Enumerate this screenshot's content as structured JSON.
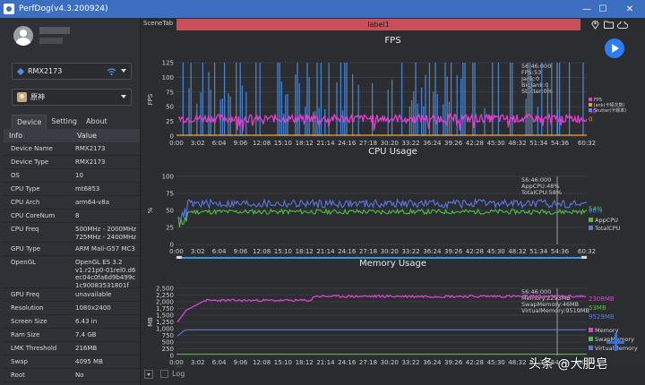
{
  "window": {
    "title": "PerfDog(v4.3.200924)",
    "minimize": "—",
    "maximize": "☐",
    "close": "✕"
  },
  "device_select": {
    "value": "RMX2173",
    "icon": "device-icon"
  },
  "app_select": {
    "value": "原神",
    "icon": "app-icon"
  },
  "tabs": [
    {
      "label": "Device"
    },
    {
      "label": "Setting"
    },
    {
      "label": "About"
    }
  ],
  "table": {
    "headers": [
      "Info",
      "Value"
    ],
    "rows": [
      {
        "k": "Device Name",
        "v": "RMX2173"
      },
      {
        "k": "Device Type",
        "v": "RMX2173"
      },
      {
        "k": "OS",
        "v": "10"
      },
      {
        "k": "CPU Type",
        "v": "mt6853"
      },
      {
        "k": "CPU Arch",
        "v": "arm64-v8a"
      },
      {
        "k": "CPU CoreNum",
        "v": "8"
      },
      {
        "k": "CPU Freq",
        "v": "500MHz - 2000MHz\n725MHz - 2400MHz"
      },
      {
        "k": "GPU Type",
        "v": "ARM Mali-G57 MC3"
      },
      {
        "k": "OpenGL",
        "v": "OpenGL ES 3.2\nv1.r21p0-01rel0.d6\nec04c0fa6d9b499c\n1c90083531801f"
      },
      {
        "k": "GPU Freq",
        "v": "unavailable"
      },
      {
        "k": "Resolution",
        "v": "1080x2400"
      },
      {
        "k": "Screen Size",
        "v": "6.43 in"
      },
      {
        "k": "Ram Size",
        "v": "7.4 GB"
      },
      {
        "k": "LMK Threshold",
        "v": "216MB"
      },
      {
        "k": "Swap",
        "v": "4095 MB"
      },
      {
        "k": "Root",
        "v": "No"
      }
    ]
  },
  "scene": {
    "tab": "SceneTab",
    "label": "label1"
  },
  "bottom": {
    "log_label": "Log"
  },
  "watermark": "头条 @大肥皂",
  "chart_data": [
    {
      "type": "line",
      "title": "FPS",
      "ylabel": "FPS",
      "ylim": [
        0,
        125
      ],
      "yticks": [
        0,
        25,
        50,
        75,
        100,
        125
      ],
      "x_ticks": [
        "0:00",
        "3:02",
        "6:04",
        "9:06",
        "12:08",
        "15:10",
        "18:12",
        "21:14",
        "24:16",
        "27:18",
        "30:20",
        "33:22",
        "36:24",
        "39:26",
        "42:28",
        "45:30",
        "48:32",
        "51:34",
        "54:36",
        "60:32"
      ],
      "series": [
        {
          "name": "FPS",
          "color": "#e040d0",
          "value_label": "30"
        },
        {
          "name": "Jank(卡顿次数)",
          "color": "#e8a030",
          "value_label": "0"
        },
        {
          "name": "Stutter(卡顿率)",
          "color": "#4f8fe8"
        }
      ],
      "fps_level": 30,
      "tooltip": [
        "56:46:000",
        "FPS:53",
        "Jank:0",
        "BigJank:0",
        "Stutter:0%"
      ]
    },
    {
      "type": "line",
      "title": "CPU Usage",
      "ylabel": "%",
      "ylim": [
        0,
        100
      ],
      "yticks": [
        0,
        25,
        50,
        75,
        100
      ],
      "x_ticks": [
        "0:00",
        "3:02",
        "6:04",
        "9:06",
        "12:08",
        "15:10",
        "18:12",
        "21:14",
        "24:16",
        "27:18",
        "30:20",
        "33:22",
        "36:24",
        "39:26",
        "42:28",
        "45:30",
        "48:32",
        "51:34",
        "54:36",
        "60:32"
      ],
      "series": [
        {
          "name": "AppCPU",
          "color": "#4cc040",
          "value_label": "54%",
          "level": 48
        },
        {
          "name": "TotalCPU",
          "color": "#5a78e0",
          "value_label": "66%",
          "level": 60
        }
      ],
      "tooltip": [
        "56:46:000",
        "AppCPU:48%",
        "TotalCPU:58%"
      ]
    },
    {
      "type": "line",
      "title": "Memory Usage",
      "ylabel": "MB",
      "ylim": [
        0,
        2500
      ],
      "yticks": [
        0,
        250,
        500,
        750,
        1000,
        1250,
        1500,
        1750,
        2000,
        2250,
        2500
      ],
      "ytick_labels": [
        "0",
        "250",
        "500",
        "750",
        "1,000",
        "1,250",
        "1,500",
        "1,750",
        "2,000",
        "2,250",
        "2,500"
      ],
      "x_ticks": [
        "0:00",
        "3:02",
        "6:04",
        "9:06",
        "12:08",
        "15:10",
        "18:12",
        "21:14",
        "24:16",
        "27:18",
        "30:20",
        "33:22",
        "36:24",
        "39:26",
        "42:28",
        "45:30",
        "48:32",
        "51:34",
        "54:36",
        "60:32"
      ],
      "series": [
        {
          "name": "Memory",
          "color": "#e040d0",
          "value_label": "2308MB",
          "level": 2250
        },
        {
          "name": "SwapMemory",
          "color": "#4cc040",
          "value_label": "53MB",
          "level": 50
        },
        {
          "name": "VirtualMemory",
          "color": "#5a78e0",
          "value_label": "9529MB",
          "level": 950
        }
      ],
      "tooltip": [
        "56:46:000",
        "Memory:2293MB",
        "SwapMemory:46MB",
        "VirtualMemory:9519MB"
      ]
    }
  ]
}
